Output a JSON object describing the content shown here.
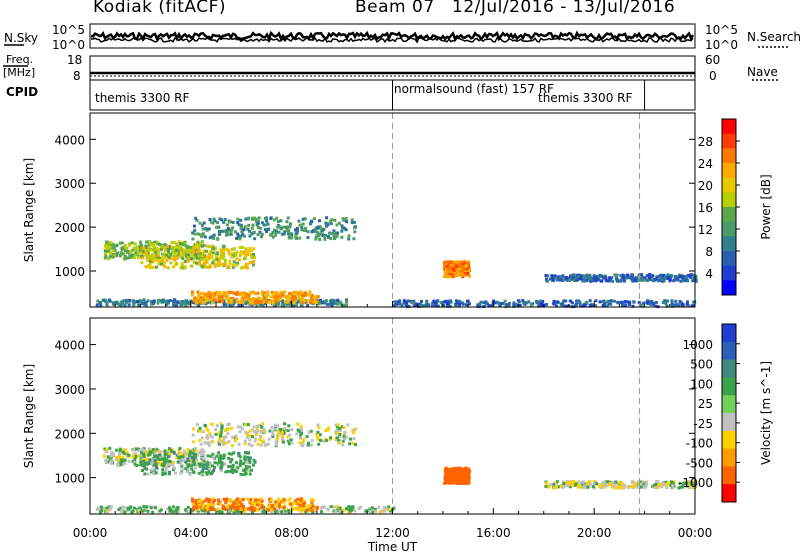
{
  "header": {
    "station": "Kodiak (fitACF)",
    "beam": "Beam 07",
    "dates": "12/Jul/2016 - 13/Jul/2016"
  },
  "left_labels": {
    "nsky": "N.Sky",
    "freq_line1": "Freq.",
    "freq_line2": "[MHz]",
    "cpid": "CPID"
  },
  "right_labels": {
    "nsearch": "N.Search",
    "nave": "Nave"
  },
  "noise_panel": {
    "y_ticks_left": [
      "10^5",
      "10^0"
    ],
    "y_ticks_right": [
      "10^5",
      "10^0"
    ]
  },
  "freq_panel": {
    "y_ticks_left": [
      "18",
      "8"
    ],
    "y_ticks_right": [
      "60",
      "0"
    ]
  },
  "cpid_panel": {
    "segments": [
      {
        "label": "themis 3300 RF",
        "start_hour": 0,
        "end_hour": 12
      },
      {
        "label": "normalsound (fast) 157 RF",
        "start_hour": 12,
        "end_hour": 22
      },
      {
        "label": "themis 3300 RF",
        "start_hour": 22,
        "end_hour": 24
      }
    ]
  },
  "power_colorbar": {
    "label": "Power [dB]",
    "ticks": [
      "28",
      "24",
      "20",
      "16",
      "12",
      "8",
      "4"
    ],
    "colors": [
      "#ff0000",
      "#ff3b00",
      "#ff7800",
      "#ffaa00",
      "#e8c800",
      "#b8d000",
      "#5aa84a",
      "#4b9a6a",
      "#2f7f8f",
      "#2a5fb0",
      "#1f3fd0",
      "#0000ff"
    ]
  },
  "velocity_colorbar": {
    "label": "Velocity [m s^-1]",
    "ticks": [
      "1000",
      "500",
      "100",
      "25",
      "-25",
      "-100",
      "-500",
      "-1000"
    ],
    "colors": [
      "#1f3fd0",
      "#2a60b8",
      "#3f8a80",
      "#3aa34a",
      "#6fd05a",
      "#c0c0c0",
      "#ffd000",
      "#ff9a00",
      "#ff6400",
      "#ff0000"
    ]
  },
  "chart_data": [
    {
      "type": "heatmap",
      "name": "Power",
      "ylabel": "Slant Range [km]",
      "xlim": [
        0,
        24
      ],
      "ylim": [
        180,
        4600
      ],
      "y_ticks": [
        1000,
        2000,
        3000,
        4000
      ],
      "regions": [
        {
          "t0": 0.2,
          "t1": 10.2,
          "r0": 250,
          "r1": 380,
          "value": 8
        },
        {
          "t0": 4.0,
          "t1": 9.0,
          "r0": 300,
          "r1": 560,
          "value": 22
        },
        {
          "t0": 0.5,
          "t1": 4.5,
          "r0": 1300,
          "r1": 1700,
          "value": 14
        },
        {
          "t0": 4.0,
          "t1": 10.5,
          "r0": 1750,
          "r1": 2250,
          "value": 10
        },
        {
          "t0": 2.0,
          "t1": 6.5,
          "r0": 1100,
          "r1": 1600,
          "value": 18
        },
        {
          "t0": 14.0,
          "t1": 15.0,
          "r0": 900,
          "r1": 1250,
          "value": 24
        },
        {
          "t0": 18.0,
          "t1": 24.0,
          "r0": 800,
          "r1": 950,
          "value": 6
        },
        {
          "t0": 12.0,
          "t1": 24.0,
          "r0": 220,
          "r1": 360,
          "value": 6
        }
      ]
    },
    {
      "type": "heatmap",
      "name": "Velocity",
      "ylabel": "Slant Range [km]",
      "xlabel": "Time UT",
      "xlim": [
        0,
        24
      ],
      "ylim": [
        180,
        4600
      ],
      "y_ticks": [
        1000,
        2000,
        3000,
        4000
      ],
      "x_ticks": [
        "00:00",
        "04:00",
        "08:00",
        "12:00",
        "16:00",
        "20:00",
        "00:00"
      ],
      "regions": [
        {
          "t0": 0.2,
          "t1": 12.0,
          "r0": 250,
          "r1": 380,
          "value": 30
        },
        {
          "t0": 4.0,
          "t1": 9.0,
          "r0": 300,
          "r1": 560,
          "value": -100
        },
        {
          "t0": 0.5,
          "t1": 4.5,
          "r0": 1300,
          "r1": 1700,
          "value": 0
        },
        {
          "t0": 4.0,
          "t1": 10.5,
          "r0": 1750,
          "r1": 2250,
          "value": 0
        },
        {
          "t0": 2.0,
          "t1": 6.5,
          "r0": 1100,
          "r1": 1600,
          "value": 60
        },
        {
          "t0": 14.0,
          "t1": 15.0,
          "r0": 900,
          "r1": 1250,
          "value": -300
        },
        {
          "t0": 18.0,
          "t1": 24.0,
          "r0": 800,
          "r1": 950,
          "value": 0
        }
      ]
    }
  ]
}
